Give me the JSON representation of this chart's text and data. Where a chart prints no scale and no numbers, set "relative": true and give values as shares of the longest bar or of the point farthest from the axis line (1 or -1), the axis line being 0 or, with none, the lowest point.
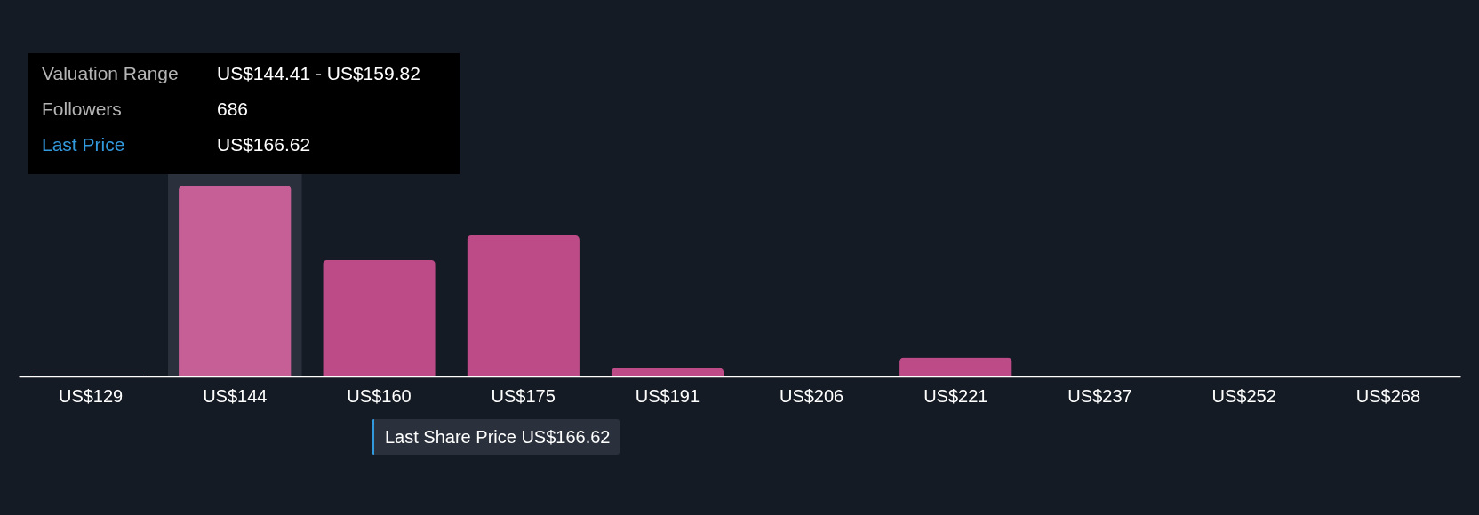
{
  "chart_data": {
    "type": "bar",
    "relative": true,
    "categories": [
      "US$129",
      "US$144",
      "US$160",
      "US$175",
      "US$191",
      "US$206",
      "US$221",
      "US$237",
      "US$252",
      "US$268"
    ],
    "values": [
      0.005,
      1,
      0.61,
      0.74,
      0.044,
      0,
      0.1,
      0,
      0,
      0
    ],
    "colors": [
      "#bd4b87",
      "#c55f96",
      "#bd4b87",
      "#bd4b87",
      "#bd4b87",
      "#bd4b87",
      "#bd4b87",
      "#bd4b87",
      "#bd4b87",
      "#bd4b87"
    ],
    "bands": [
      {
        "axis": "x",
        "from": "US$144",
        "to": "US$144",
        "color": "#2a313c"
      }
    ],
    "annotations": [
      "Valuation Range",
      "US$144.41 - US$159.82",
      "Followers",
      "686",
      "Last Price",
      "US$166.62",
      "Last Share Price US$166.62"
    ],
    "grid": false
  }
}
